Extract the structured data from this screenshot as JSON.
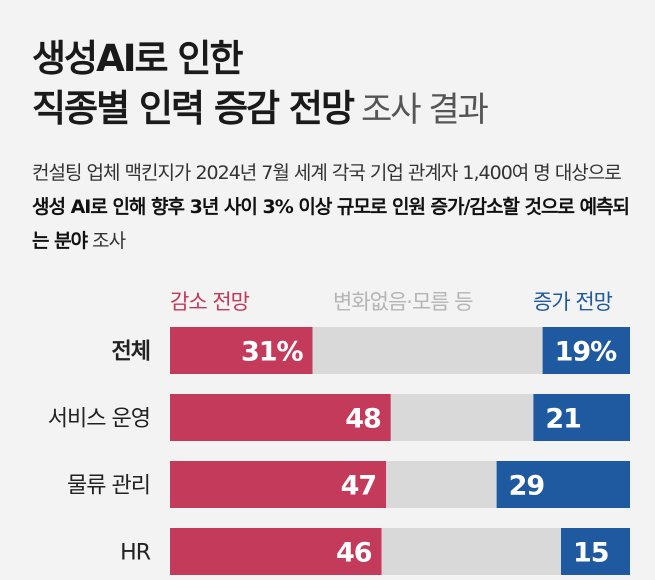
{
  "title": {
    "line1": "생성AI로 인한",
    "line2_bold": "직종별 인력 증감 전망",
    "line2_light": "조사 결과"
  },
  "description": {
    "part1": "컨설팅 업체 맥킨지가 2024년 7월 세계 각국 기업 관계자 1,400여 명 대상으로 ",
    "bold": "생성 AI로 인해 향후 3년 사이 3% 이상 규모로 인원 증가/감소할 것으로 예측되는 분야",
    "part2": " 조사"
  },
  "legend": {
    "decrease": "감소 전망",
    "neutral": "변화없음·모름 등",
    "increase": "증가 전망"
  },
  "colors": {
    "decrease": "#c43a5a",
    "neutral": "#d9d9d9",
    "increase": "#1f5aa0",
    "background": "#f3f3f3"
  },
  "chart_data": {
    "type": "bar",
    "stacked": true,
    "orientation": "horizontal",
    "categories": [
      "전체",
      "서비스 운영",
      "물류 관리",
      "HR"
    ],
    "category_bold": [
      true,
      false,
      false,
      false
    ],
    "series": [
      {
        "name": "감소 전망",
        "values": [
          31,
          48,
          47,
          46
        ]
      },
      {
        "name": "변화없음·모름 등",
        "values": [
          50,
          31,
          24,
          39
        ]
      },
      {
        "name": "증가 전망",
        "values": [
          19,
          21,
          29,
          15
        ]
      }
    ],
    "value_labels_decrease": [
      "31%",
      "48",
      "47",
      "46"
    ],
    "value_labels_increase": [
      "19%",
      "21",
      "29",
      "15"
    ],
    "xlim": [
      0,
      100
    ]
  }
}
